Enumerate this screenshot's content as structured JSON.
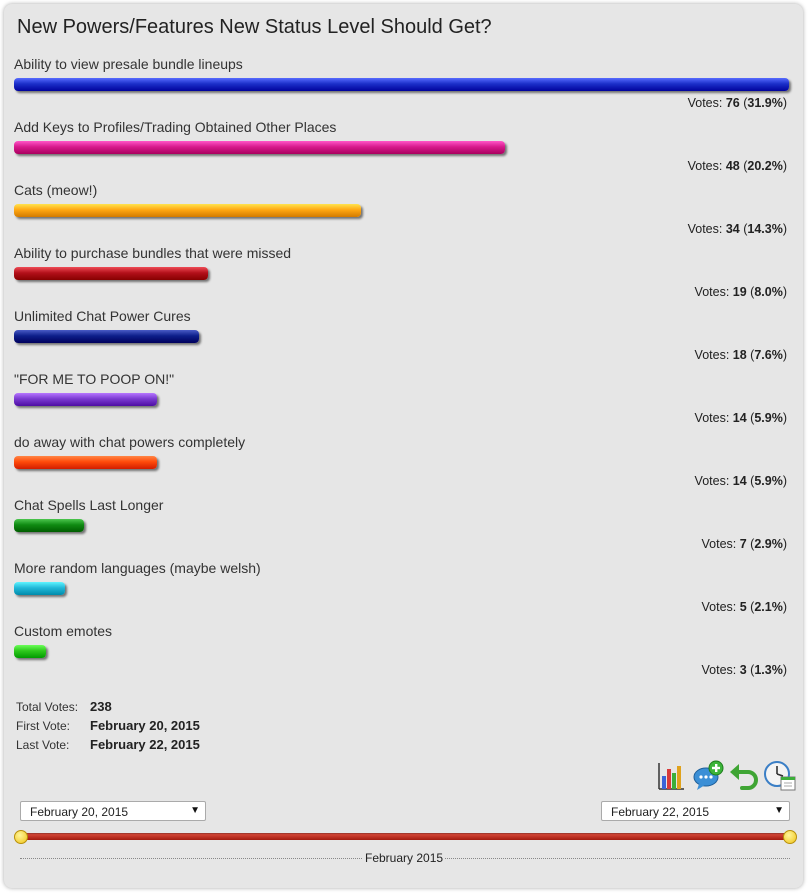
{
  "title": "New Powers/Features New Status Level Should Get?",
  "votes_prefix": "Votes:",
  "options": [
    {
      "label": "Ability to view presale bundle lineups",
      "votes": "76",
      "percent": "31.9%",
      "fraction": 0.319,
      "color": "#1b2fc9"
    },
    {
      "label": "Add Keys to Profiles/Trading Obtained Other Places",
      "votes": "48",
      "percent": "20.2%",
      "fraction": 0.202,
      "color": "#d7198c"
    },
    {
      "label": "Cats (meow!)",
      "votes": "34",
      "percent": "14.3%",
      "fraction": 0.143,
      "color": "#ffa712"
    },
    {
      "label": "Ability to purchase bundles that were missed",
      "votes": "19",
      "percent": "8.0%",
      "fraction": 0.08,
      "color": "#b3101a"
    },
    {
      "label": "Unlimited Chat Power Cures",
      "votes": "18",
      "percent": "7.6%",
      "fraction": 0.076,
      "color": "#0d1f8a"
    },
    {
      "label": "\"FOR ME TO POOP ON!\"",
      "votes": "14",
      "percent": "5.9%",
      "fraction": 0.059,
      "color": "#7a3ad0"
    },
    {
      "label": "do away with chat powers completely",
      "votes": "14",
      "percent": "5.9%",
      "fraction": 0.059,
      "color": "#ff4a0a"
    },
    {
      "label": "Chat Spells Last Longer",
      "votes": "7",
      "percent": "2.9%",
      "fraction": 0.029,
      "color": "#0f8a12"
    },
    {
      "label": "More random languages (maybe welsh)",
      "votes": "5",
      "percent": "2.1%",
      "fraction": 0.021,
      "color": "#22b8d8"
    },
    {
      "label": "Custom emotes",
      "votes": "3",
      "percent": "1.3%",
      "fraction": 0.013,
      "color": "#2ec81c"
    }
  ],
  "stats": {
    "total_label": "Total Votes:",
    "total_value": "238",
    "first_label": "First Vote:",
    "first_value": "February 20, 2015",
    "last_label": "Last Vote:",
    "last_value": "February 22, 2015"
  },
  "toolbar": {
    "icons": [
      "bar-chart-icon",
      "add-comment-icon",
      "undo-icon",
      "schedule-icon"
    ]
  },
  "date_range": {
    "start": "February 20, 2015",
    "end": "February 22, 2015",
    "slider_color": "#c8281a",
    "timeline_label": "February 2015"
  }
}
